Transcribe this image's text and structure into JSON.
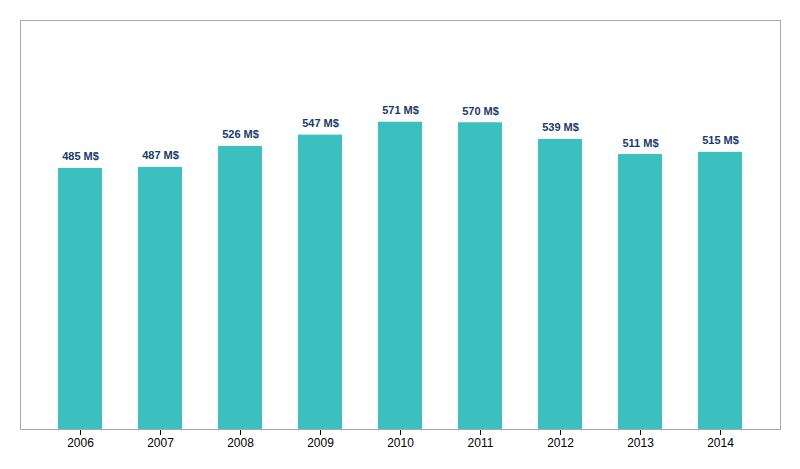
{
  "chart_data": {
    "type": "bar",
    "categories": [
      "2006",
      "2007",
      "2008",
      "2009",
      "2010",
      "2011",
      "2012",
      "2013",
      "2014"
    ],
    "values": [
      485,
      487,
      526,
      547,
      571,
      570,
      539,
      511,
      515
    ],
    "value_labels": [
      "485 M$",
      "487 M$",
      "526 M$",
      "547 M$",
      "571 M$",
      "570 M$",
      "539 M$",
      "511 M$",
      "515 M$"
    ],
    "data_labels": true,
    "color": "#3BBFBF",
    "ylim": [
      0,
      760
    ],
    "tick_labels": "x",
    "grid": false
  }
}
